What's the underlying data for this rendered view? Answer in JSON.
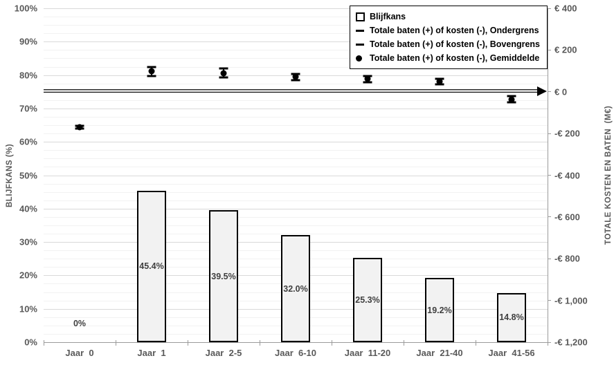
{
  "chart_data": {
    "type": "bar",
    "title": "",
    "categories": [
      "Jaar  0",
      "Jaar  1",
      "Jaar  2-5",
      "Jaar  6-10",
      "Jaar  11-20",
      "Jaar  21-40",
      "Jaar  41-56"
    ],
    "bar_series": {
      "name": "Blijfkans",
      "values_pct": [
        0,
        45.4,
        39.5,
        32.0,
        25.3,
        19.2,
        14.8
      ],
      "labels": [
        "0%",
        "45.4%",
        "39.5%",
        "32.0%",
        "25.3%",
        "19.2%",
        "14.8%"
      ]
    },
    "point_series": {
      "name": "Totale baten (+) of kosten (-), Gemiddelde",
      "gemiddelde_meur": [
        -170,
        98,
        90,
        71,
        61,
        48,
        -36
      ],
      "ondergrens_meur": [
        -178,
        75,
        69,
        55,
        46,
        35,
        -49
      ],
      "bovengrens_meur": [
        -162,
        118,
        112,
        85,
        75,
        62,
        -21
      ]
    },
    "zero_line_meur": 0,
    "left_axis": {
      "label": "BLIJFKANS (%)",
      "min": 0,
      "max": 100,
      "ticks": [
        "100%",
        "90%",
        "80%",
        "70%",
        "60%",
        "50%",
        "40%",
        "30%",
        "20%",
        "10%",
        "0%"
      ],
      "major_step_pct": 10,
      "minor_step_pct": 2.5,
      "grid": "on"
    },
    "right_axis": {
      "label": "TOTALE KOSTEN EN BATEN  (M€)",
      "min": -1200,
      "max": 400,
      "ticks": [
        "€ 400",
        "€ 200",
        "€ 0",
        "-€ 200",
        "-€ 400",
        "-€ 600",
        "-€ 800",
        "-€ 1,000",
        "-€ 1,200"
      ],
      "tick_values": [
        400,
        200,
        0,
        -200,
        -400,
        -600,
        -800,
        -1000,
        -1200
      ]
    },
    "legend": {
      "position": "top-right",
      "entries": [
        {
          "marker": "square",
          "label": "Blijfkans"
        },
        {
          "marker": "dash",
          "label": "Totale baten (+) of kosten (-), Ondergrens"
        },
        {
          "marker": "dash",
          "label": "Totale baten (+) of kosten (-), Bovengrens"
        },
        {
          "marker": "circle",
          "label": "Totale baten (+) of kosten (-), Gemiddelde"
        }
      ]
    }
  },
  "colors": {
    "bar_fill": "#f2f2f2",
    "bar_border": "#000000",
    "marker": "#000000",
    "grid_major": "#d9d9d9",
    "grid_minor": "#f2f2f2",
    "axis_line": "#9a9a9a",
    "tick_text": "#595959",
    "bar_label_text": "#404040",
    "legend_border": "#000000",
    "background": "#ffffff"
  }
}
